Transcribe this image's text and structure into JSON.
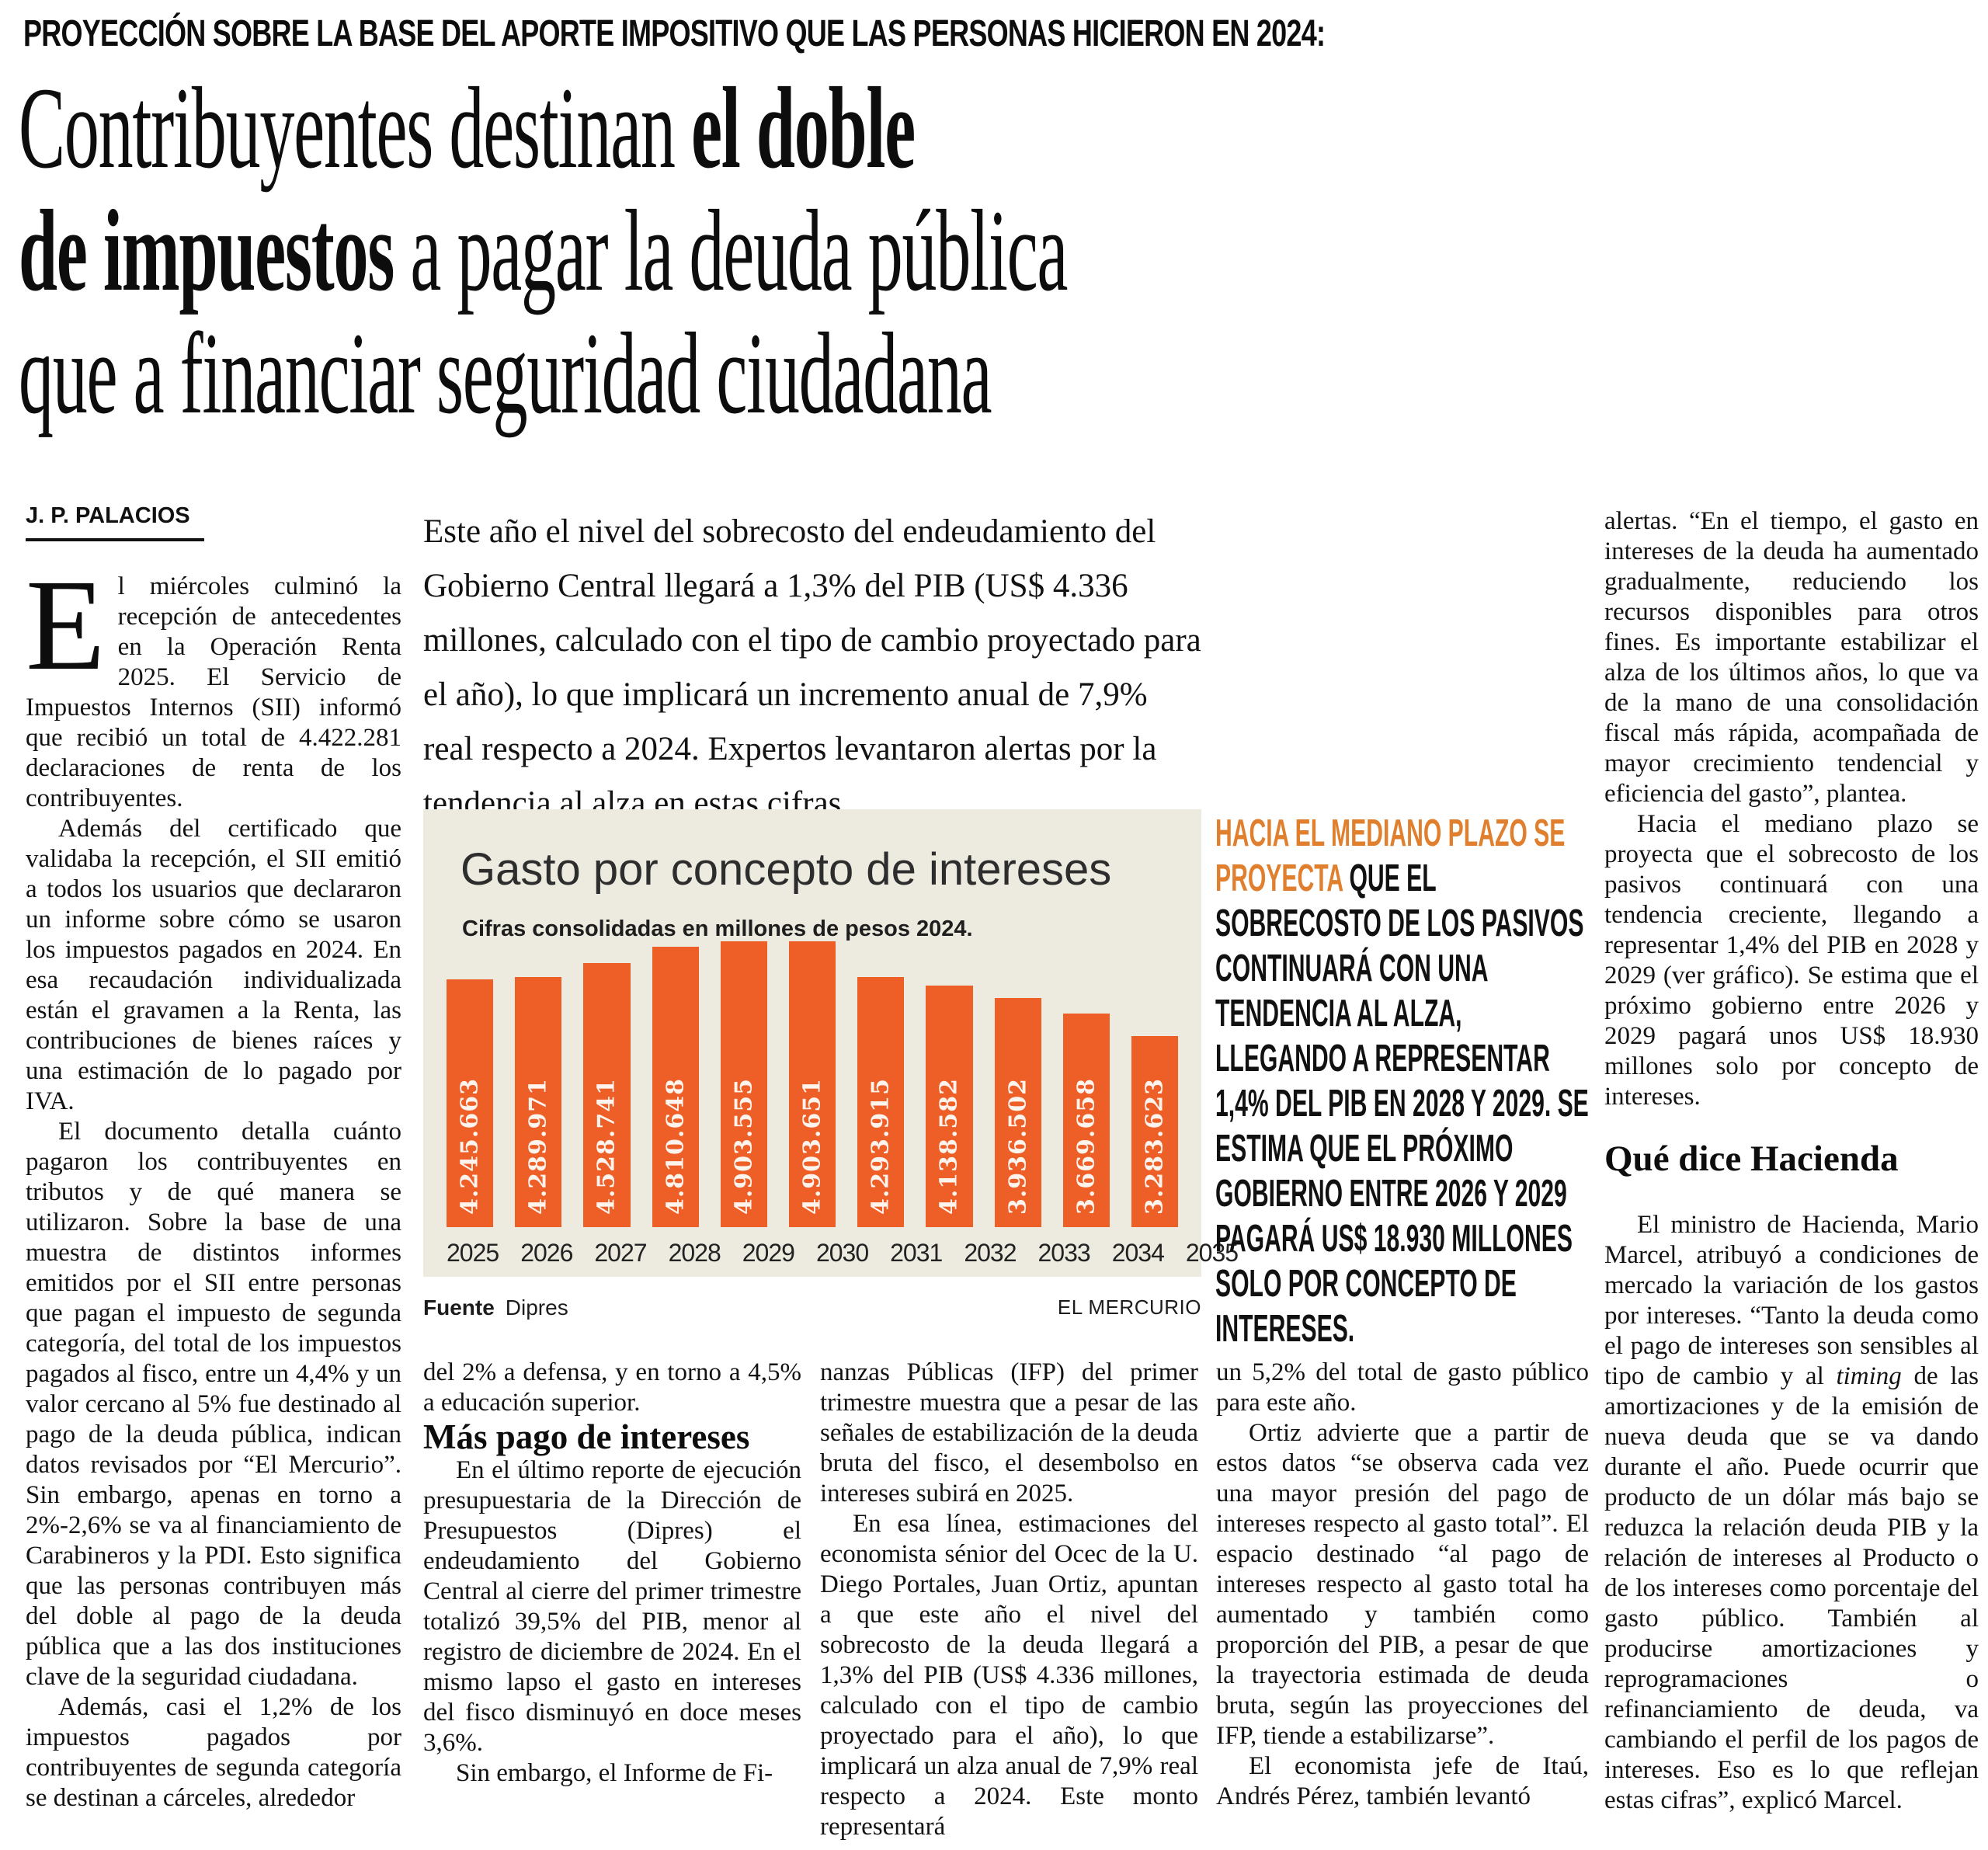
{
  "kicker": "PROYECCIÓN SOBRE LA BASE DEL APORTE IMPOSITIVO QUE LAS PERSONAS HICIERON EN 2024:",
  "headline": {
    "line1_regular": "Contribuyentes destinan ",
    "line1_bold": "el doble",
    "line2_bold": "de impuestos ",
    "line2_regular": "a pagar la deuda pública",
    "line3": "que a financiar seguridad ciudadana"
  },
  "byline": "J. P. PALACIOS",
  "lede": "Este año el nivel del sobrecosto del endeudamiento del Gobierno Central llegará a 1,3% del PIB (US$ 4.336 millones, calculado con el tipo de cambio proyectado para el año), lo que implicará un incremento anual de 7,9% real respecto a 2024. Expertos levantaron alertas por la tendencia al alza en estas cifras.",
  "left_column": {
    "dropcap": "E",
    "p1_rest": "l miércoles culminó la recepción de antecedentes en la Operación Renta 2025. El Servicio de Impuestos Internos (SII) informó que recibió un total de 4.422.281 declaraciones de renta de los contribuyentes.",
    "p2": "Además del certificado que validaba la recepción, el SII emitió a todos los usuarios que declararon un informe sobre cómo se usaron los impuestos pagados en 2024. En esa recaudación individualizada están el gravamen a la Renta, las contribuciones de bienes raíces y una estimación de lo pagado por IVA.",
    "p3": "El documento detalla cuánto pagaron los contribuyentes en tributos y de qué manera se utilizaron. Sobre la base de una muestra de distintos informes emitidos por el SII entre personas que pagan el impuesto de segunda categoría, del total de los impuestos pagados al fisco, entre un 4,4% y un valor cercano al 5% fue destinado al pago de la deuda pública, indican datos revisados por “El Mercurio”. Sin embargo, apenas en torno a 2%-2,6% se va al financiamiento de Carabineros y la PDI. Esto significa que las personas contribuyen más del doble al pago de la deuda pública que a las dos instituciones clave de la seguridad ciudadana.",
    "p4": "Además, casi el 1,2% de los impuestos pagados por contribuyentes de segunda categoría se destinan a cárceles, alrededor"
  },
  "chart_data": {
    "type": "bar",
    "title": "Gasto por concepto de intereses",
    "subtitle": "Cifras consolidadas en millones de pesos 2024.",
    "categories": [
      "2025",
      "2026",
      "2027",
      "2028",
      "2029",
      "2030",
      "2031",
      "2032",
      "2033",
      "2034",
      "2035"
    ],
    "values": [
      4245663,
      4289971,
      4528741,
      4810648,
      4903555,
      4903651,
      4293915,
      4138582,
      3936502,
      3669658,
      3283623
    ],
    "labels": [
      "4.245.663",
      "4.289.971",
      "4.528.741",
      "4.810.648",
      "4.903.555",
      "4.903.651",
      "4.293.915",
      "4.138.582",
      "3.936.502",
      "3.669.658",
      "3.283.623"
    ],
    "xlabel": "",
    "ylabel": "",
    "grid": false,
    "legend": false,
    "source_label": "Fuente",
    "source": "Dipres",
    "credit": "EL MERCURIO",
    "bar_color": "#ee5f28",
    "background_color": "#edebe0"
  },
  "pullquote": {
    "highlight": "HACIA EL MEDIANO PLAZO SE PROYECTA ",
    "rest": "QUE EL SOBRECOSTO DE LOS PASIVOS CONTINUARÁ CON UNA TENDENCIA AL ALZA, LLEGANDO A REPRESENTAR 1,4% DEL PIB EN 2028 Y 2029. SE ESTIMA QUE EL PRÓXIMO GOBIERNO ENTRE 2026 Y 2029 PAGARÁ US$ 18.930 MILLONES SOLO POR CONCEPTO DE INTERESES.",
    "highlight_color": "#e0802f"
  },
  "columns": {
    "a": {
      "p1": "del 2% a defensa, y en torno a 4,5% a educación superior.",
      "subhead": "Más pago de intereses",
      "p2": "En el último reporte de ejecución presupuestaria de la Dirección de Presupuestos (Dipres) el endeudamiento del Gobierno Central al cierre del primer trimestre totalizó 39,5% del PIB, menor al registro de diciembre de 2024. En el mismo lapso el gasto en intereses del fisco disminuyó en doce meses 3,6%.",
      "p3": "Sin embargo, el Informe de Fi-"
    },
    "b": {
      "p1": "nanzas Públicas (IFP) del primer trimestre muestra que a pesar de las señales de estabilización de la deuda bruta del fisco, el desembolso en intereses subirá en 2025.",
      "p2": "En esa línea, estimaciones del economista sénior del Ocec de la U. Diego Portales, Juan Ortiz, apuntan a que este año el nivel del sobrecosto de la deuda llegará a 1,3% del PIB (US$ 4.336 millones, calculado con el tipo de cambio proyectado para el año), lo que implicará un alza anual de 7,9% real respecto a 2024. Este monto representará"
    },
    "c": {
      "p1": "un 5,2% del total de gasto público para este año.",
      "p2": "Ortiz advierte que a partir de estos datos “se observa cada vez una mayor presión del pago de intereses respecto al gasto total”. El espacio destinado “al pago de intereses respecto al gasto total ha aumentado y también como proporción del PIB, a pesar de que la trayectoria estimada de deuda bruta, según las proyecciones del IFP, tiende a estabilizarse”.",
      "p3": "El economista jefe de Itaú, Andrés Pérez, también levantó"
    },
    "d": {
      "p1": "alertas. “En el tiempo, el gasto en intereses de la deuda ha aumentado gradualmente, reduciendo los recursos disponibles para otros fines. Es importante estabilizar el alza de los últimos años, lo que va de la mano de una consolidación fiscal más rápida, acompañada de mayor crecimiento tendencial y eficiencia del gasto”, plantea.",
      "p2": "Hacia el mediano plazo se proyecta que el sobrecosto de los pasivos continuará con una tendencia creciente, llegando a representar 1,4% del PIB en 2028 y 2029 (ver gráfico). Se estima que el próximo gobierno entre 2026 y 2029 pagará unos US$ 18.930 millones solo por concepto de intereses.",
      "subhead": "Qué dice Hacienda",
      "p3_before": "El ministro de Hacienda, Mario Marcel, atribuyó a condiciones de mercado la variación de los gastos por intereses. “Tanto la deuda como el pago de intereses son sensibles al tipo de cambio y al ",
      "p3_italic": "timing",
      "p3_after": " de las amortizaciones y de la emisión de nueva deuda que se va dando durante el año. Puede ocurrir que producto de un dólar más bajo se reduzca la relación deuda PIB y la relación de intereses al Producto o de los intereses como porcentaje del gasto público. También al producirse amortizaciones y reprogramaciones o refinanciamiento de deuda, va cambiando el perfil de los pagos de intereses. Eso es lo que reflejan estas cifras”, explicó Marcel."
    }
  }
}
